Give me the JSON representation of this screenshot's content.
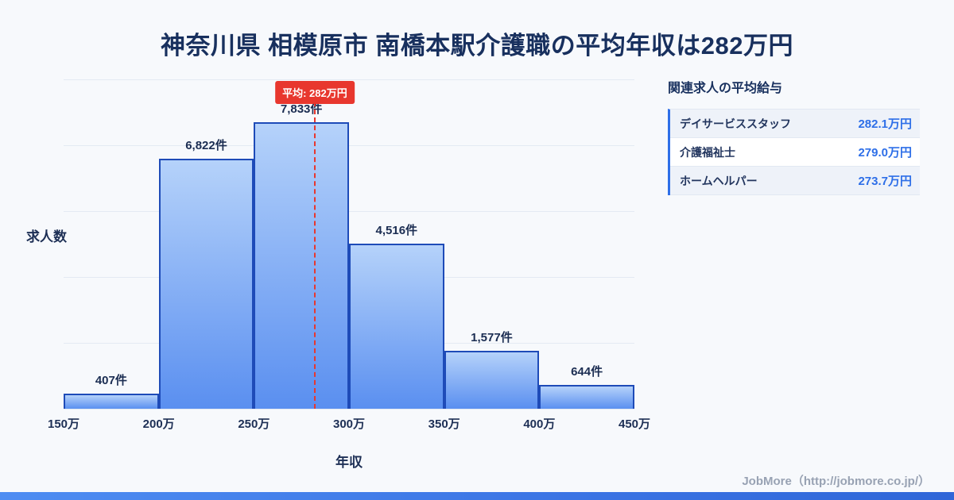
{
  "page": {
    "title": "神奈川県 相模原市 南橋本駅介護職の平均年収は282万円",
    "footer": "JobMore（http://jobmore.co.jp/）"
  },
  "colors": {
    "background": "#f7f9fc",
    "title-navy": "#18305e",
    "accent-blue": "#2e6fe8",
    "bar-border": "#1e4bb8",
    "bar-top": "#b5d2fa",
    "bar-bottom": "#5a8ff0",
    "average-red": "#e8372e",
    "grid-line": "#e4eaf3",
    "footer-gray": "#98a2b3"
  },
  "chart_data": {
    "type": "bar",
    "title": "神奈川県 相模原市 南橋本駅介護職の平均年収は282万円",
    "xlabel": "年収",
    "ylabel": "求人数",
    "categories": [
      "150万",
      "200万",
      "250万",
      "300万",
      "350万",
      "400万",
      "450万"
    ],
    "x_range": [
      150,
      450
    ],
    "values": [
      407,
      6822,
      7833,
      4516,
      1577,
      644
    ],
    "bar_labels": [
      "407件",
      "6,822件",
      "7,833件",
      "4,516件",
      "1,577件",
      "644件"
    ],
    "ylim": [
      0,
      9000
    ],
    "grid": "horizontal",
    "legend": "none",
    "average": {
      "value": 282,
      "label": "平均: 282万円"
    }
  },
  "side_panel": {
    "heading": "関連求人の平均給与",
    "rows": [
      {
        "name": "デイサービススタッフ",
        "value": "282.1万円"
      },
      {
        "name": "介護福祉士",
        "value": "279.0万円"
      },
      {
        "name": "ホームヘルパー",
        "value": "273.7万円"
      }
    ]
  }
}
